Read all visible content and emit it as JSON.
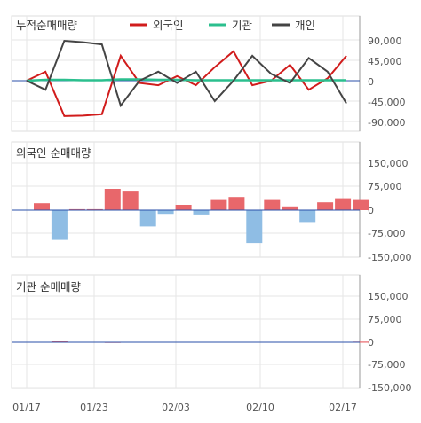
{
  "chart_data": [
    {
      "type": "line",
      "title": "누적순매매량",
      "ytick_labels": [
        "90,000",
        "45,000",
        "0",
        "-45,000",
        "-90,000"
      ],
      "ylim": [
        -100000,
        100000
      ],
      "grid": true,
      "legend_position": "top",
      "series": [
        {
          "name": "외국인",
          "color": "#d11c1c",
          "values": [
            0,
            20000,
            -78000,
            -77000,
            -74000,
            55000,
            -5000,
            -10000,
            10000,
            -10000,
            30000,
            65000,
            -10000,
            0,
            35000,
            -20000,
            5000,
            55000
          ]
        },
        {
          "name": "기관",
          "color": "#2bbf8e",
          "values": [
            0,
            2000,
            2000,
            1000,
            1000,
            3000,
            3000,
            2000,
            2000,
            1000,
            1000,
            1000,
            1000,
            1000,
            1000,
            1000,
            1000,
            1000
          ]
        },
        {
          "name": "개인",
          "color": "#444444",
          "values": [
            0,
            -20000,
            88000,
            85000,
            80000,
            -55000,
            0,
            20000,
            -5000,
            20000,
            -45000,
            0,
            55000,
            15000,
            -5000,
            50000,
            20000,
            -50000
          ]
        }
      ]
    },
    {
      "type": "bar",
      "title": "외국인 순매매량",
      "ytick_labels": [
        "150,000",
        "75,000",
        "0",
        "-75,000",
        "-150,000"
      ],
      "ylim": [
        -150000,
        150000
      ],
      "grid": true,
      "values": [
        22000,
        -95000,
        3000,
        3000,
        68000,
        62000,
        -52000,
        -12000,
        17000,
        -14000,
        35000,
        42000,
        -105000,
        35000,
        12000,
        -38000,
        25000,
        38000,
        35000
      ]
    },
    {
      "type": "bar",
      "title": "기관 순매매량",
      "ytick_labels": [
        "150,000",
        "75,000",
        "0",
        "-75,000",
        "-150,000"
      ],
      "ylim": [
        -150000,
        150000
      ],
      "grid": true,
      "values": [
        0,
        3000,
        0,
        0,
        1500,
        0,
        0,
        0,
        0,
        0,
        0,
        0,
        0,
        0,
        0,
        0,
        0,
        0,
        2000
      ]
    }
  ],
  "x_axis": {
    "tick_labels": [
      "01/17",
      "01/23",
      "02/03",
      "02/10",
      "02/17"
    ]
  },
  "colors": {
    "positive_bar": "#e8676b",
    "negative_bar": "#8fbde4",
    "zero_line": "#2a4fa8",
    "grid": "#e6e6e6",
    "axis": "#999999"
  }
}
